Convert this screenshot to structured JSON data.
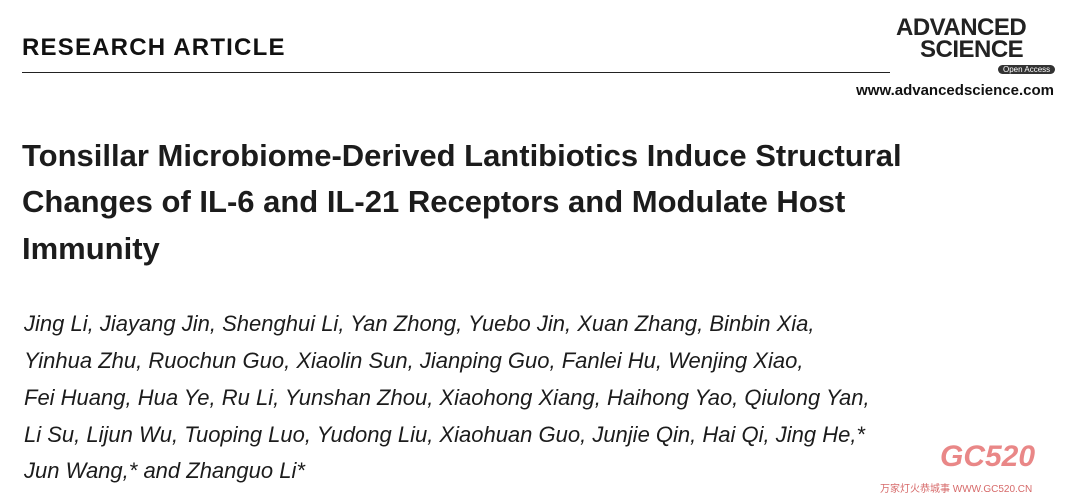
{
  "header": {
    "section": "RESEARCH ARTICLE",
    "journal_line1": "ADVANCED",
    "journal_line2": "SCIENCE",
    "badge": "Open Access",
    "url": "www.advancedscience.com"
  },
  "title": {
    "lines": [
      "Tonsillar Microbiome-Derived Lantibiotics Induce Structural",
      "Changes of IL-6 and IL-21 Receptors and Modulate Host",
      "Immunity"
    ]
  },
  "authors": {
    "lines": [
      "Jing Li, Jiayang Jin, Shenghui Li, Yan Zhong, Yuebo Jin, Xuan Zhang, Binbin Xia,",
      "Yinhua Zhu, Ruochun Guo, Xiaolin Sun, Jianping Guo, Fanlei Hu, Wenjing Xiao,",
      "Fei Huang, Hua Ye, Ru Li, Yunshan Zhou, Xiaohong Xiang, Haihong Yao, Qiulong Yan,",
      "Li Su, Lijun Wu, Tuoping Luo, Yudong Liu, Xiaohuan Guo, Junjie Qin, Hai Qi, Jing He,*",
      "Jun Wang,* and Zhanguo Li*"
    ]
  },
  "watermark": {
    "logo": "GC520",
    "caption": "万家灯火恭城事 WWW.GC520.CN"
  }
}
